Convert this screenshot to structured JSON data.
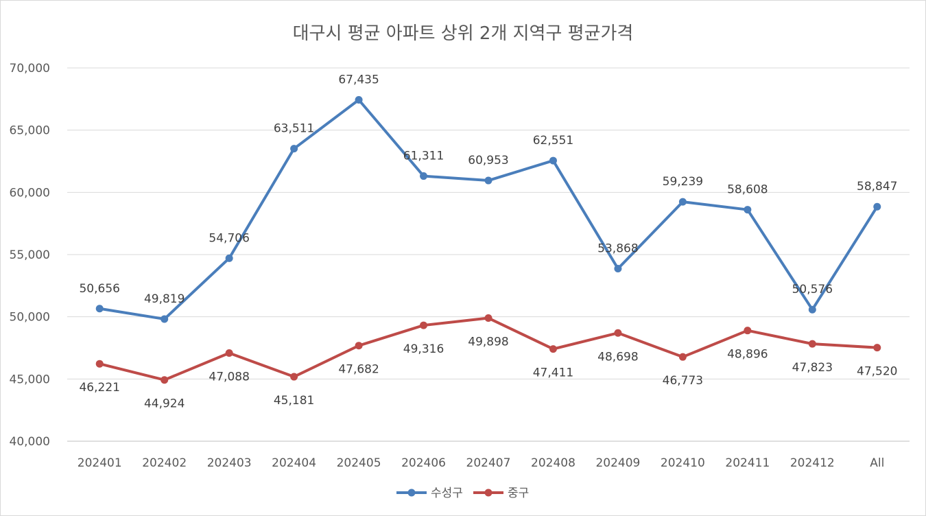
{
  "chart_data": {
    "type": "line",
    "title": "대구시 평균 아파트 상위 2개 지역구 평균가격",
    "xlabel": "",
    "ylabel": "",
    "categories": [
      "202401",
      "202402",
      "202403",
      "202404",
      "202405",
      "202406",
      "202407",
      "202408",
      "202409",
      "202410",
      "202411",
      "202412",
      "All"
    ],
    "ylim": [
      40000,
      70000
    ],
    "yticks": [
      40000,
      45000,
      50000,
      55000,
      60000,
      65000,
      70000
    ],
    "ytick_labels": [
      "40,000",
      "45,000",
      "50,000",
      "55,000",
      "60,000",
      "65,000",
      "70,000"
    ],
    "grid": true,
    "legend_position": "bottom",
    "series": [
      {
        "name": "수성구",
        "color": "#4a7ebb",
        "values": [
          50656,
          49819,
          54706,
          63511,
          67435,
          61311,
          60953,
          62551,
          53868,
          59239,
          58608,
          50576,
          58847
        ],
        "labels": [
          "50,656",
          "49,819",
          "54,706",
          "63,511",
          "67,435",
          "61,311",
          "60,953",
          "62,551",
          "53,868",
          "59,239",
          "58,608",
          "50,576",
          "58,847"
        ],
        "label_position": "above"
      },
      {
        "name": "중구",
        "color": "#be4b48",
        "values": [
          46221,
          44924,
          47088,
          45181,
          47682,
          49316,
          49898,
          47411,
          48698,
          46773,
          48896,
          47823,
          47520
        ],
        "labels": [
          "46,221",
          "44,924",
          "47,088",
          "45,181",
          "47,682",
          "49,316",
          "49,898",
          "47,411",
          "48,698",
          "46,773",
          "48,896",
          "47,823",
          "47,520"
        ],
        "label_position": "below"
      }
    ]
  }
}
